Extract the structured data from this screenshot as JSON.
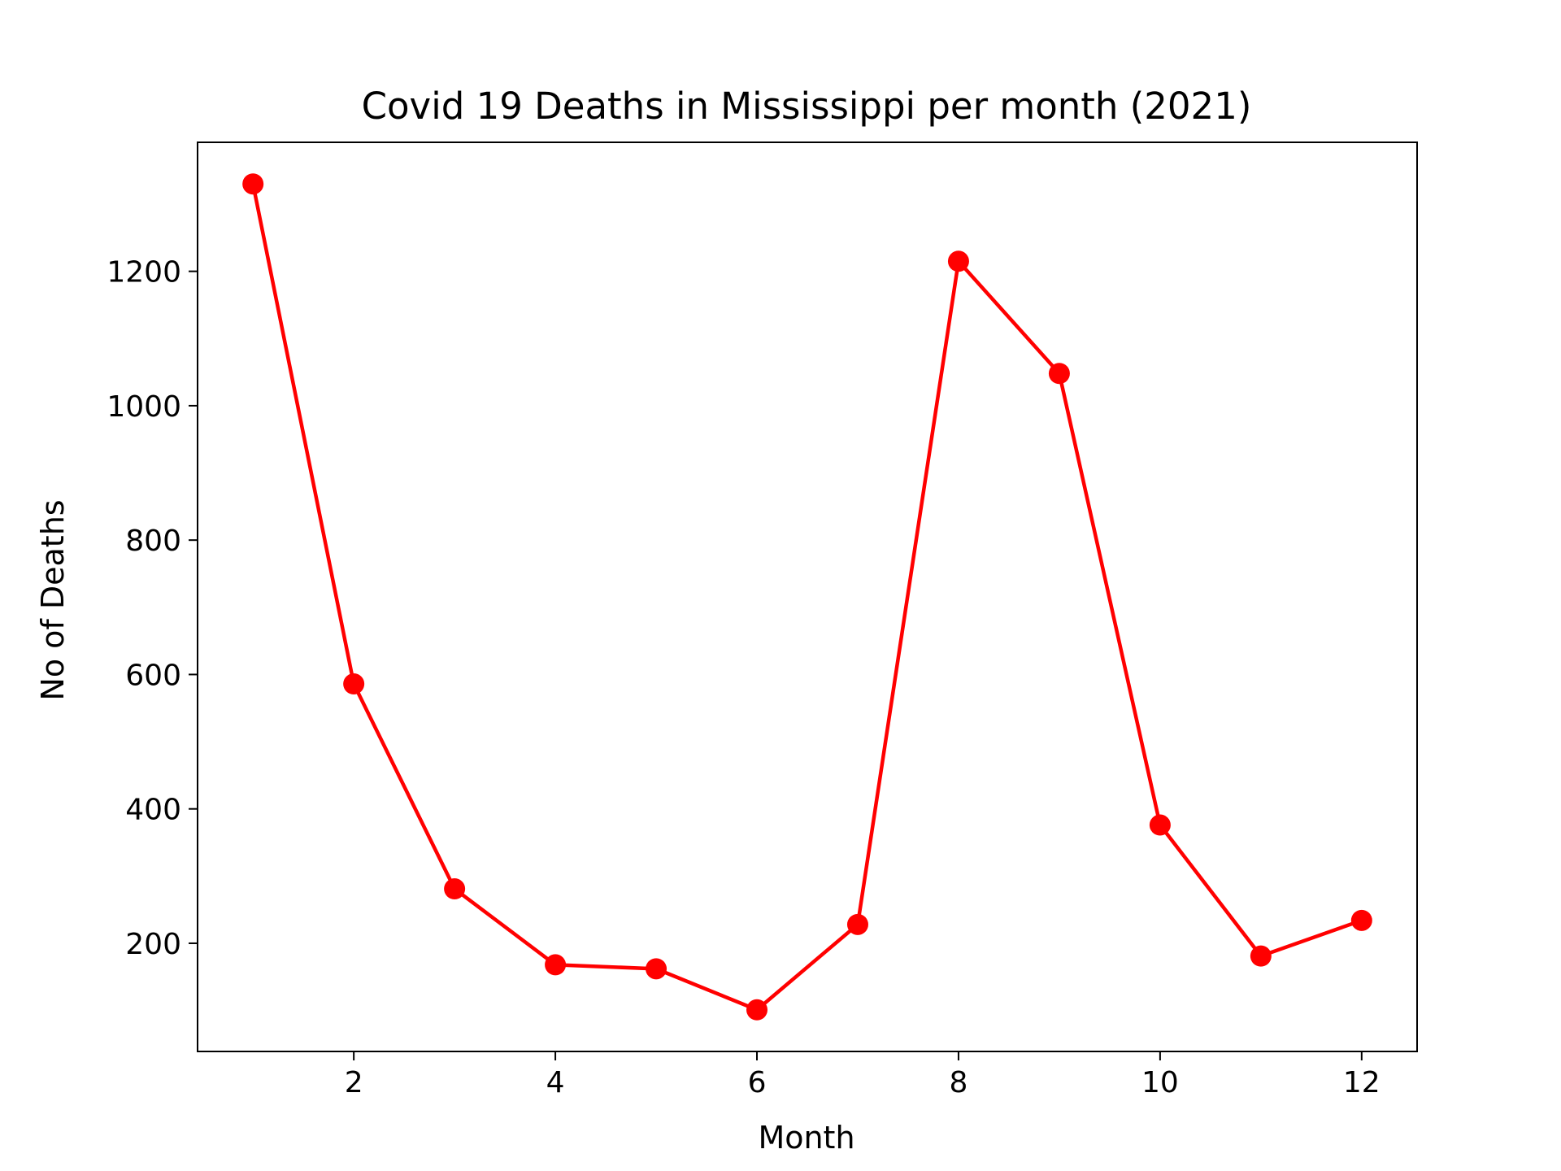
{
  "chart_data": {
    "type": "line",
    "title": "Covid 19 Deaths in Mississippi per month (2021)",
    "xlabel": "Month",
    "ylabel": "No of Deaths",
    "x": [
      1,
      2,
      3,
      4,
      5,
      6,
      7,
      8,
      9,
      10,
      11,
      12
    ],
    "series": [
      {
        "values": [
          1330,
          586,
          281,
          168,
          162,
          101,
          228,
          1215,
          1048,
          376,
          181,
          234
        ]
      }
    ],
    "xlim": [
      0.45,
      12.55
    ],
    "ylim": [
      39,
      1392
    ],
    "xticks": [
      2,
      4,
      6,
      8,
      10,
      12
    ],
    "yticks": [
      200,
      400,
      600,
      800,
      1000,
      1200
    ],
    "grid": false,
    "colors": {
      "series": "#ff0000",
      "axis": "#000000"
    }
  }
}
